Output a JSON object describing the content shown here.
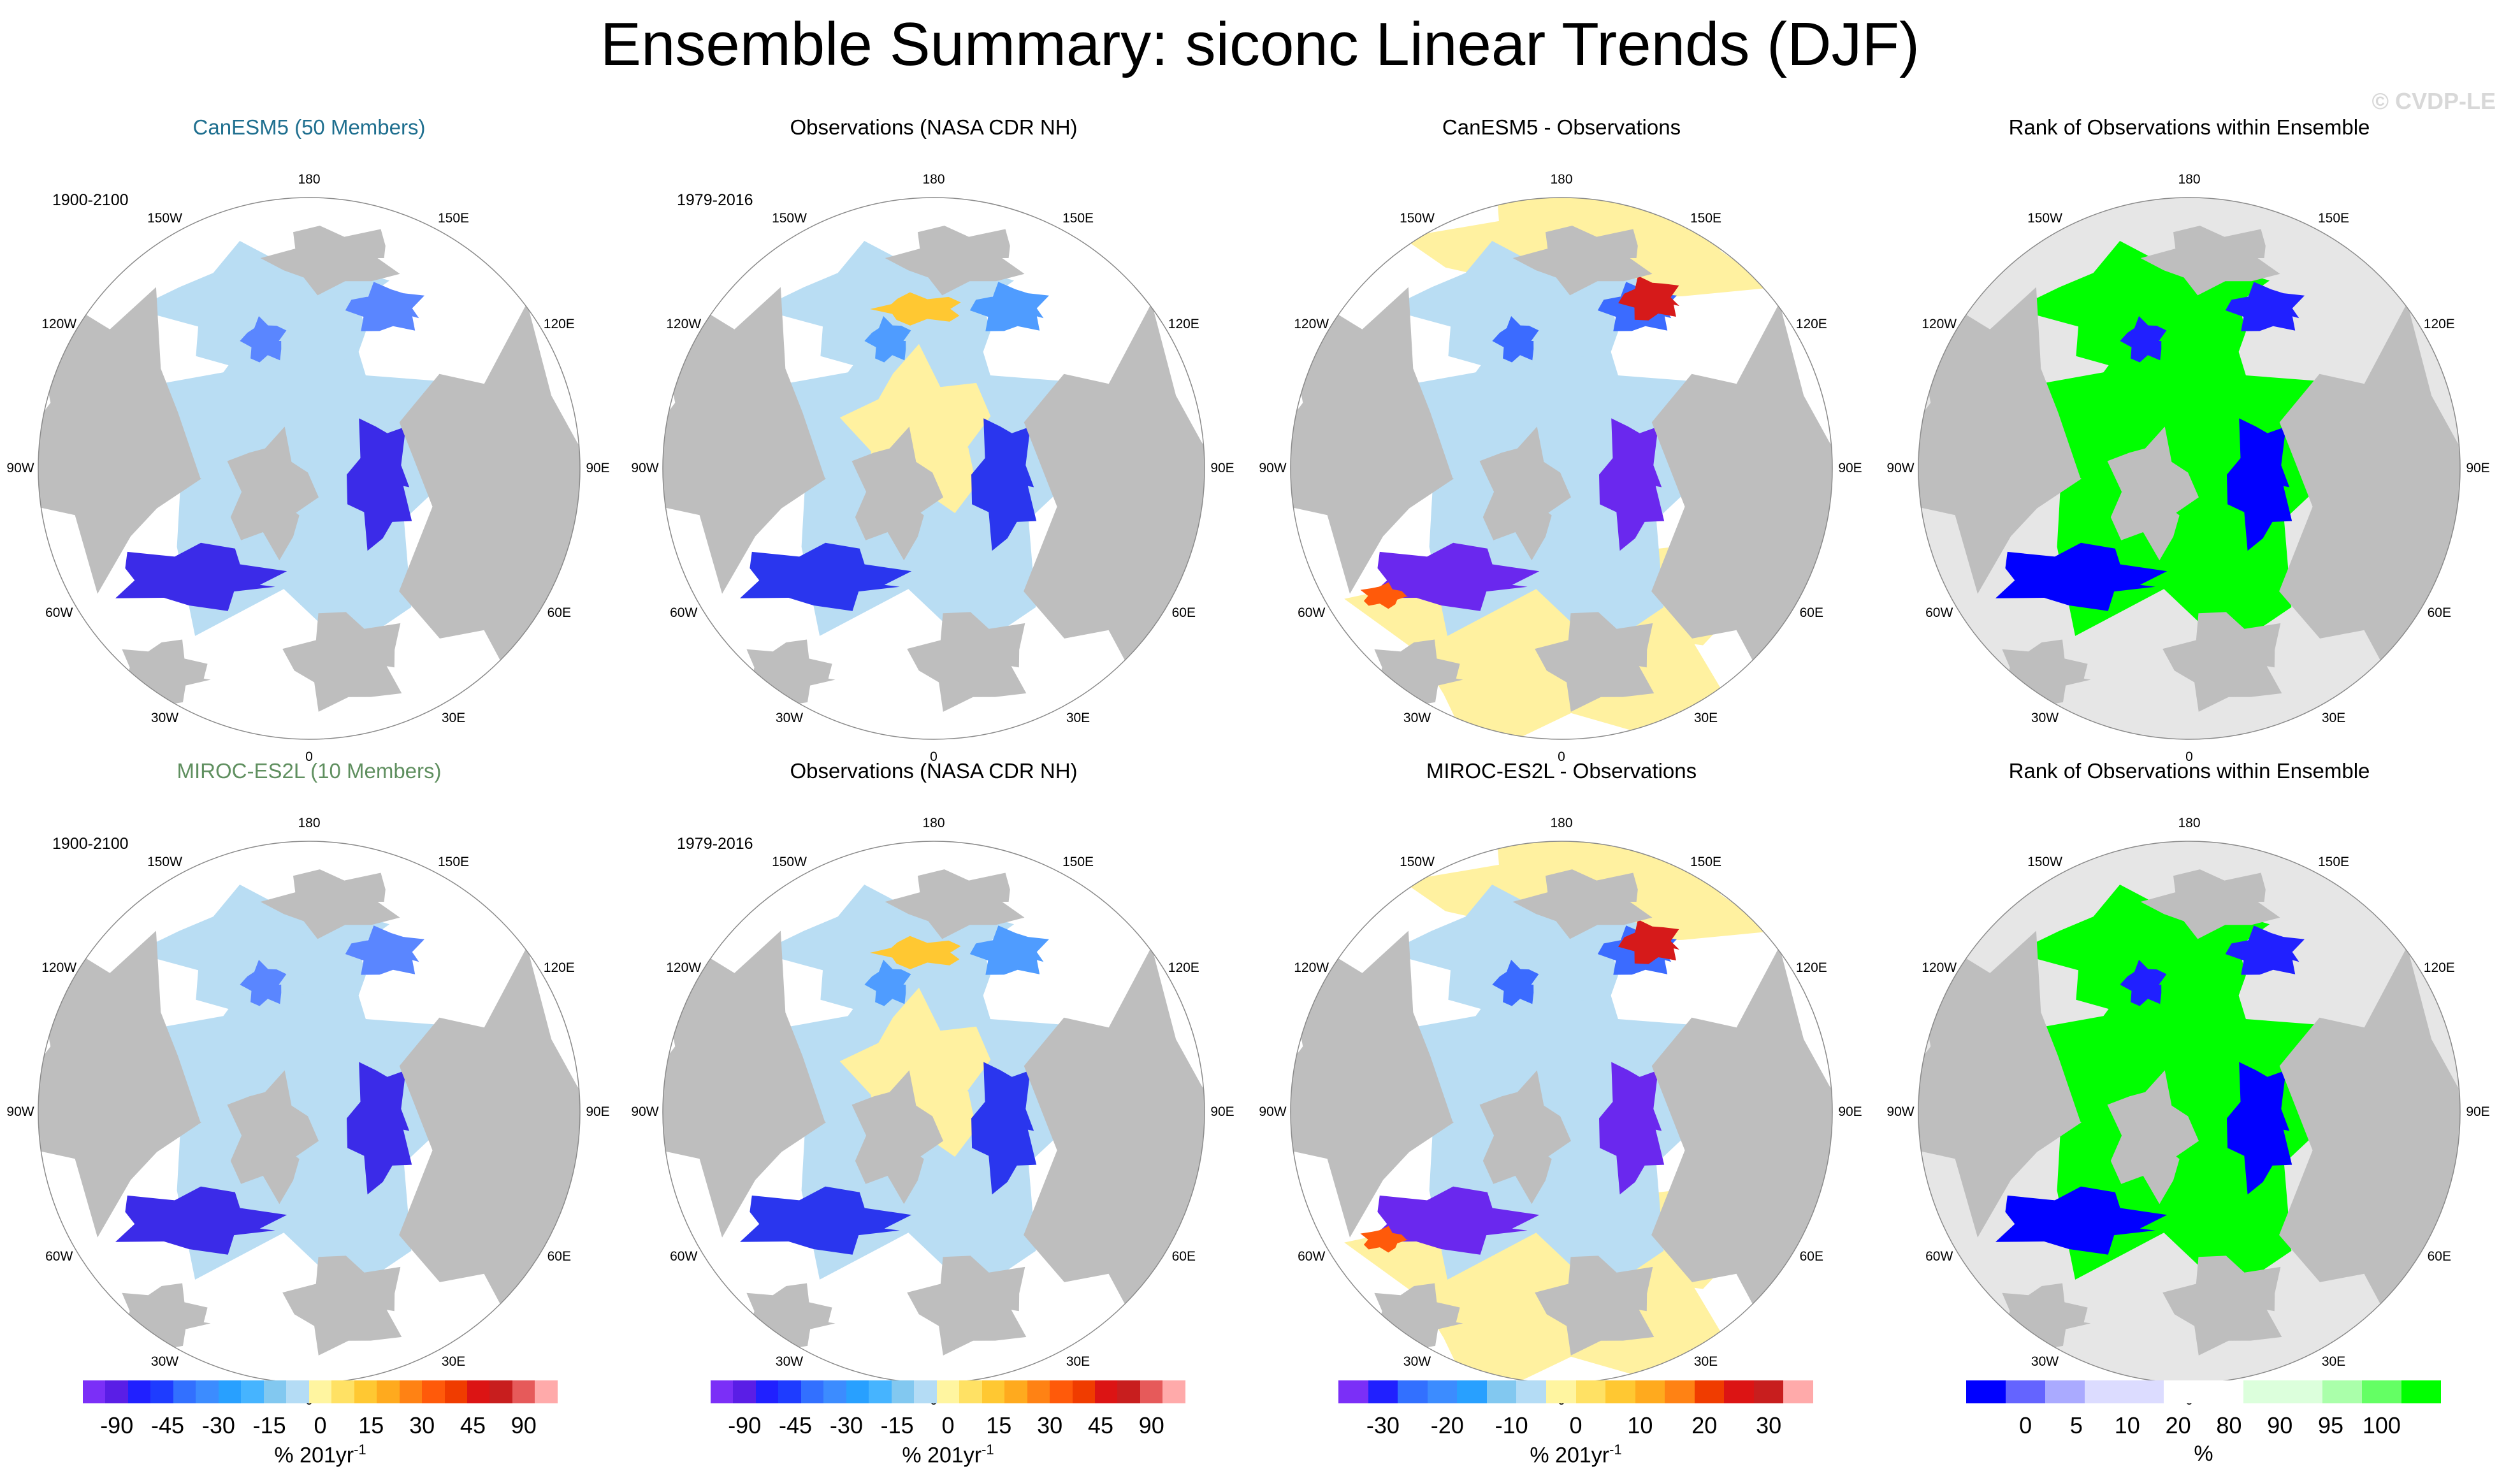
{
  "title": "Ensemble Summary: siconc Linear Trends (DJF)",
  "watermark": "© CVDP-LE",
  "lon_labels": [
    "180",
    "150E",
    "120E",
    "90E",
    "60E",
    "30E",
    "0",
    "30W",
    "60W",
    "90W",
    "120W",
    "150W"
  ],
  "panels": [
    {
      "title": "CanESM5 (50 Members)",
      "title_color": "#1f6f8f",
      "period": "1900-2100",
      "kind": "model"
    },
    {
      "title": "Observations (NASA CDR NH)",
      "title_color": "#000000",
      "period": "1979-2016",
      "kind": "obs"
    },
    {
      "title": "CanESM5 - Observations",
      "title_color": "#000000",
      "period": "",
      "kind": "diff"
    },
    {
      "title": "Rank of Observations within Ensemble",
      "title_color": "#000000",
      "period": "",
      "kind": "rank"
    },
    {
      "title": "MIROC-ES2L (10 Members)",
      "title_color": "#5f8f5f",
      "period": "1900-2100",
      "kind": "model"
    },
    {
      "title": "Observations (NASA CDR NH)",
      "title_color": "#000000",
      "period": "1979-2016",
      "kind": "obs"
    },
    {
      "title": "MIROC-ES2L - Observations",
      "title_color": "#000000",
      "period": "",
      "kind": "diff"
    },
    {
      "title": "Rank of Observations within Ensemble",
      "title_color": "#000000",
      "period": "",
      "kind": "rank"
    }
  ],
  "colorbars": [
    {
      "colors": [
        "#7b2ff7",
        "#5a1ee6",
        "#2020ff",
        "#1e3cff",
        "#3270ff",
        "#3c8cff",
        "#28a0ff",
        "#46b4ff",
        "#82c8f0",
        "#b4dcf5",
        "#fff5a0",
        "#ffe164",
        "#ffc832",
        "#ffaa1e",
        "#ff8214",
        "#ff5a0a",
        "#f03c00",
        "#dc1414",
        "#c81e1e",
        "#e65a5a",
        "#ffaaaa"
      ],
      "ticks": [
        "-90",
        "-45",
        "-30",
        "-15",
        "0",
        "15",
        "30",
        "45",
        "90"
      ],
      "unit": "% 201yr",
      "unit_sup": "-1"
    },
    {
      "colors": [
        "#7b2ff7",
        "#5a1ee6",
        "#2020ff",
        "#1e3cff",
        "#3270ff",
        "#3c8cff",
        "#28a0ff",
        "#46b4ff",
        "#82c8f0",
        "#b4dcf5",
        "#fff5a0",
        "#ffe164",
        "#ffc832",
        "#ffaa1e",
        "#ff8214",
        "#ff5a0a",
        "#f03c00",
        "#dc1414",
        "#c81e1e",
        "#e65a5a",
        "#ffaaaa"
      ],
      "ticks": [
        "-90",
        "-45",
        "-30",
        "-15",
        "0",
        "15",
        "30",
        "45",
        "90"
      ],
      "unit": "% 201yr",
      "unit_sup": "-1"
    },
    {
      "colors": [
        "#7b2ff7",
        "#2020ff",
        "#3270ff",
        "#3c8cff",
        "#28a0ff",
        "#82c8f0",
        "#b4dcf5",
        "#fff5a0",
        "#ffe164",
        "#ffc832",
        "#ffaa1e",
        "#ff8214",
        "#f03c00",
        "#dc1414",
        "#c81e1e",
        "#ffaaaa"
      ],
      "ticks": [
        "-30",
        "-20",
        "-10",
        "0",
        "10",
        "20",
        "30"
      ],
      "unit": "% 201yr",
      "unit_sup": "-1"
    },
    {
      "colors": [
        "#0000ff",
        "#6464ff",
        "#aaaaff",
        "#dcdcff",
        "#dcdcff",
        "#ffffff",
        "#ffffff",
        "#dcffdc",
        "#dcffdc",
        "#aaffaa",
        "#64ff64",
        "#00ff00"
      ],
      "ticks": [
        "0",
        "5",
        "10",
        "20",
        "80",
        "90",
        "95",
        "100"
      ],
      "unit": "%",
      "unit_sup": ""
    }
  ]
}
